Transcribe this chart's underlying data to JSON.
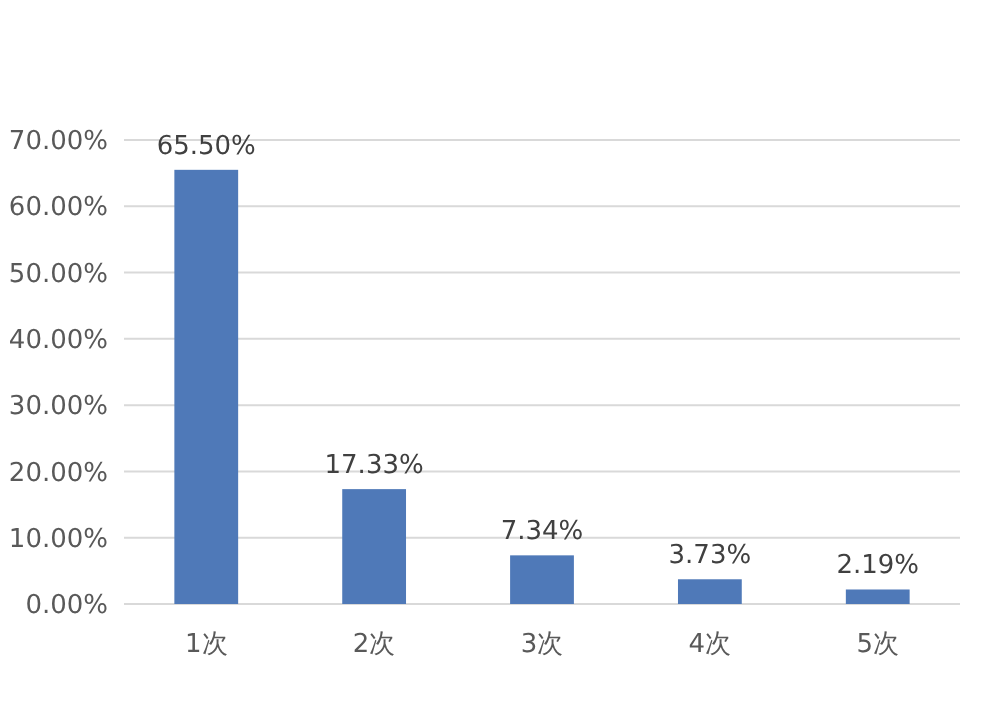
{
  "chart_data": {
    "type": "bar",
    "categories": [
      "1次",
      "2次",
      "3次",
      "4次",
      "5次"
    ],
    "values": [
      65.5,
      17.33,
      7.34,
      3.73,
      2.19
    ],
    "value_labels": [
      "65.50%",
      "17.33%",
      "7.34%",
      "3.73%",
      "2.19%"
    ],
    "color": "#4f79b8",
    "ylim": [
      0,
      70
    ],
    "yticks": [
      {
        "value": 0,
        "label": "0.00%"
      },
      {
        "value": 10,
        "label": "10.00%"
      },
      {
        "value": 20,
        "label": "20.00%"
      },
      {
        "value": 30,
        "label": "30.00%"
      },
      {
        "value": 40,
        "label": "40.00%"
      },
      {
        "value": 50,
        "label": "50.00%"
      },
      {
        "value": 60,
        "label": "60.00%"
      },
      {
        "value": 70,
        "label": "70.00%"
      }
    ],
    "grid": "y"
  }
}
